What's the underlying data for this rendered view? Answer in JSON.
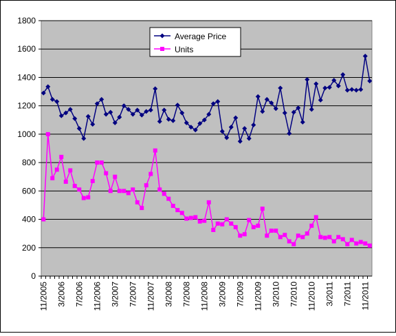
{
  "chart_data": {
    "type": "line",
    "categories": [
      "11/2005",
      null,
      null,
      null,
      "3/2006",
      null,
      null,
      null,
      "7/2006",
      null,
      null,
      null,
      "11/2006",
      null,
      null,
      null,
      "3/2007",
      null,
      null,
      null,
      "7/2007",
      null,
      null,
      null,
      "11/2007",
      null,
      null,
      null,
      "3/2008",
      null,
      null,
      null,
      "7/2008",
      null,
      null,
      null,
      "11/2008",
      null,
      null,
      null,
      "3/2009",
      null,
      null,
      null,
      "7/2009",
      null,
      null,
      null,
      "11/2009",
      null,
      null,
      null,
      "3/2010",
      null,
      null,
      null,
      "7/2010",
      null,
      null,
      null,
      "11/2010",
      null,
      null,
      null,
      "3/2011",
      null,
      null,
      null,
      "7/2011",
      null,
      null,
      null,
      "11/2011",
      null
    ],
    "series": [
      {
        "name": "Average Price",
        "color": "#000080",
        "marker": "diamond",
        "values": [
          1290,
          1335,
          1245,
          1230,
          1130,
          1150,
          1175,
          1110,
          1040,
          970,
          1125,
          1070,
          1215,
          1245,
          1140,
          1155,
          1080,
          1120,
          1200,
          1175,
          1140,
          1170,
          1135,
          1160,
          1170,
          1320,
          1090,
          1170,
          1105,
          1095,
          1205,
          1150,
          1080,
          1050,
          1030,
          1075,
          1100,
          1140,
          1215,
          1230,
          1020,
          975,
          1050,
          1115,
          950,
          1040,
          970,
          1065,
          1265,
          1160,
          1245,
          1220,
          1180,
          1325,
          1150,
          1005,
          1155,
          1185,
          1085,
          1385,
          1175,
          1355,
          1240,
          1325,
          1330,
          1380,
          1340,
          1420,
          1310,
          1315,
          1310,
          1315,
          1550,
          1375
        ]
      },
      {
        "name": "Units",
        "color": "#ff00ff",
        "marker": "square",
        "values": [
          400,
          1000,
          690,
          750,
          840,
          665,
          745,
          635,
          610,
          550,
          555,
          670,
          800,
          800,
          725,
          600,
          700,
          600,
          600,
          585,
          610,
          520,
          480,
          640,
          720,
          885,
          610,
          580,
          545,
          495,
          465,
          445,
          405,
          410,
          415,
          385,
          390,
          520,
          325,
          370,
          365,
          400,
          370,
          345,
          285,
          295,
          395,
          345,
          355,
          475,
          285,
          320,
          320,
          275,
          290,
          245,
          225,
          285,
          275,
          300,
          355,
          415,
          275,
          270,
          275,
          245,
          275,
          260,
          225,
          255,
          230,
          240,
          230,
          215
        ]
      }
    ],
    "ylim": [
      0,
      1800
    ],
    "yticks": [
      0,
      200,
      400,
      600,
      800,
      1000,
      1200,
      1400,
      1600,
      1800
    ],
    "grid": true
  }
}
